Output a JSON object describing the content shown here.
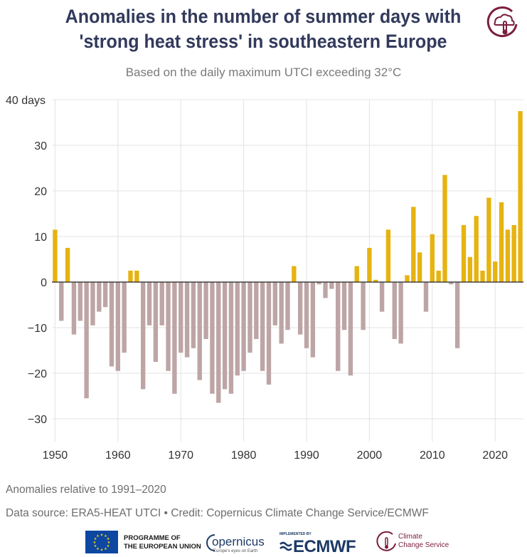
{
  "header": {
    "title_line1": "Anomalies in the number of summer days with",
    "title_line2": "'strong heat stress' in southeastern Europe",
    "subtitle": "Based on the daily maximum UTCI exceeding 32°C"
  },
  "footer": {
    "note": "Anomalies relative to 1991–2020",
    "source": "Data source: ERA5-HEAT UTCI • Credit: Copernicus Climate Change Service/ECMWF"
  },
  "logos": {
    "eu_line1": "PROGRAMME OF",
    "eu_line2": "THE EUROPEAN UNION",
    "copernicus": "opernicus",
    "copernicus_tagline": "Europe's eyes on Earth",
    "ecmwf_implemented": "IMPLEMENTED BY",
    "ecmwf": "ECMWF",
    "c3s_line1": "Climate",
    "c3s_line2": "Change Service"
  },
  "colors": {
    "positive": "#e6b310",
    "negative": "#bea5a5",
    "title": "#323a5c",
    "grid": "#e3e3e3",
    "zero_line": "#222222",
    "brand": "#7a1f3d"
  },
  "chart_data": {
    "type": "bar",
    "title": "Anomalies in the number of summer days with 'strong heat stress' in southeastern Europe",
    "subtitle": "Based on the daily maximum UTCI exceeding 32°C",
    "xlabel": "",
    "ylabel": "days",
    "ylim": [
      -35,
      40
    ],
    "xlim": [
      1949.5,
      2024.5
    ],
    "yticks": [
      -30,
      -20,
      -10,
      0,
      10,
      20,
      30,
      40
    ],
    "ytick_labels": [
      "−30",
      "−20",
      "−10",
      "0",
      "10",
      "20",
      "30",
      "40 days"
    ],
    "xticks": [
      1950,
      1960,
      1970,
      1980,
      1990,
      2000,
      2010,
      2020
    ],
    "xtick_labels": [
      "1950",
      "1960",
      "1970",
      "1980",
      "1990",
      "2000",
      "2010",
      "2020"
    ],
    "grid": true,
    "x": [
      1950,
      1951,
      1952,
      1953,
      1954,
      1955,
      1956,
      1957,
      1958,
      1959,
      1960,
      1961,
      1962,
      1963,
      1964,
      1965,
      1966,
      1967,
      1968,
      1969,
      1970,
      1971,
      1972,
      1973,
      1974,
      1975,
      1976,
      1977,
      1978,
      1979,
      1980,
      1981,
      1982,
      1983,
      1984,
      1985,
      1986,
      1987,
      1988,
      1989,
      1990,
      1991,
      1992,
      1993,
      1994,
      1995,
      1996,
      1997,
      1998,
      1999,
      2000,
      2001,
      2002,
      2003,
      2004,
      2005,
      2006,
      2007,
      2008,
      2009,
      2010,
      2011,
      2012,
      2013,
      2014,
      2015,
      2016,
      2017,
      2018,
      2019,
      2020,
      2021,
      2022,
      2023,
      2024
    ],
    "values": [
      11.5,
      -8.5,
      7.5,
      -11.5,
      -8.5,
      -25.5,
      -9.5,
      -6.5,
      -5.5,
      -18.5,
      -19.5,
      -15.5,
      2.5,
      2.5,
      -23.5,
      -9.5,
      -17.5,
      -9.5,
      -19.5,
      -24.5,
      -15.5,
      -16.5,
      -14.5,
      -21.5,
      -12.5,
      -24.5,
      -26.5,
      -23.5,
      -24.5,
      -20.5,
      -19.5,
      -15.5,
      -12.5,
      -19.5,
      -22.5,
      -9.5,
      -13.5,
      -10.5,
      3.5,
      -11.5,
      -14.5,
      -16.5,
      -0.5,
      -3.5,
      -1.5,
      -19.5,
      -10.5,
      -20.5,
      3.5,
      -10.5,
      7.5,
      0.5,
      -6.5,
      11.5,
      -12.5,
      -13.5,
      1.5,
      16.5,
      6.5,
      -6.5,
      10.5,
      2.5,
      23.5,
      -0.5,
      -14.5,
      12.5,
      5.5,
      14.5,
      2.5,
      18.5,
      4.5,
      17.5,
      11.5,
      12.5,
      37.5
    ]
  }
}
